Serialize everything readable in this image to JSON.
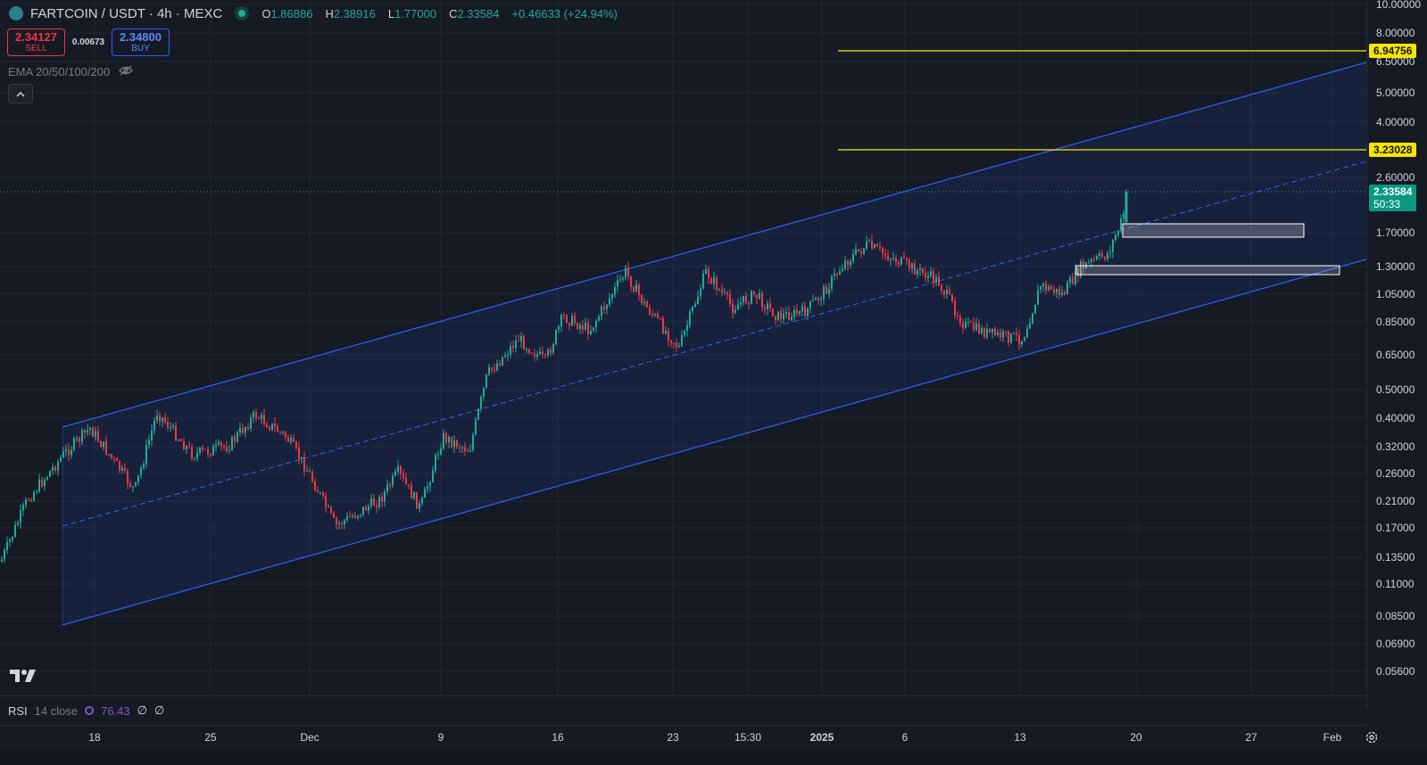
{
  "header": {
    "symbol_title": "FARTCOIN / USDT · 4h · MEXC",
    "ohlc": [
      {
        "key": "O",
        "value": "1.86886"
      },
      {
        "key": "H",
        "value": "2.38916"
      },
      {
        "key": "L",
        "value": "1.77000"
      },
      {
        "key": "C",
        "value": "2.33584"
      }
    ],
    "change": "+0.46633 (+24.94%)"
  },
  "trade": {
    "sell_price": "2.34127",
    "sell_label": "SELL",
    "spread": "0.00673",
    "buy_price": "2.34800",
    "buy_label": "BUY"
  },
  "indicators": {
    "ema_label": "EMA 20/50/100/200",
    "collapse_icon": "chevron-up-icon"
  },
  "price_axis": {
    "ticks": [
      "10.00000",
      "8.00000",
      "6.50000",
      "5.00000",
      "4.00000",
      "2.60000",
      "1.70000",
      "1.30000",
      "1.05000",
      "0.85000",
      "0.65000",
      "0.50000",
      "0.40000",
      "0.32000",
      "0.26000",
      "0.21000",
      "0.17000",
      "0.13500",
      "0.11000",
      "0.08500",
      "0.06900",
      "0.05600"
    ],
    "levels": [
      {
        "value": "6.94756",
        "color": "#f7e600"
      },
      {
        "value": "3.23028",
        "color": "#f7e600"
      }
    ],
    "current_price": "2.33584",
    "countdown": "50:33"
  },
  "rsi": {
    "label": "RSI",
    "params": "14 close",
    "value": "76.43",
    "extra1": "∅",
    "extra2": "∅"
  },
  "time_axis": {
    "labels": [
      {
        "text": "18",
        "bold": false
      },
      {
        "text": "25",
        "bold": false
      },
      {
        "text": "Dec",
        "bold": false
      },
      {
        "text": "9",
        "bold": false
      },
      {
        "text": "16",
        "bold": false
      },
      {
        "text": "23",
        "bold": false
      },
      {
        "text": "15:30",
        "bold": false
      },
      {
        "text": "2025",
        "bold": true
      },
      {
        "text": "6",
        "bold": false
      },
      {
        "text": "13",
        "bold": false
      },
      {
        "text": "20",
        "bold": false
      },
      {
        "text": "27",
        "bold": false
      },
      {
        "text": "Feb",
        "bold": false
      }
    ]
  },
  "colors": {
    "up": "#22ab94",
    "down": "#f23645",
    "channel": "#2962ff",
    "level": "#f7e600",
    "background": "#161a25"
  }
}
